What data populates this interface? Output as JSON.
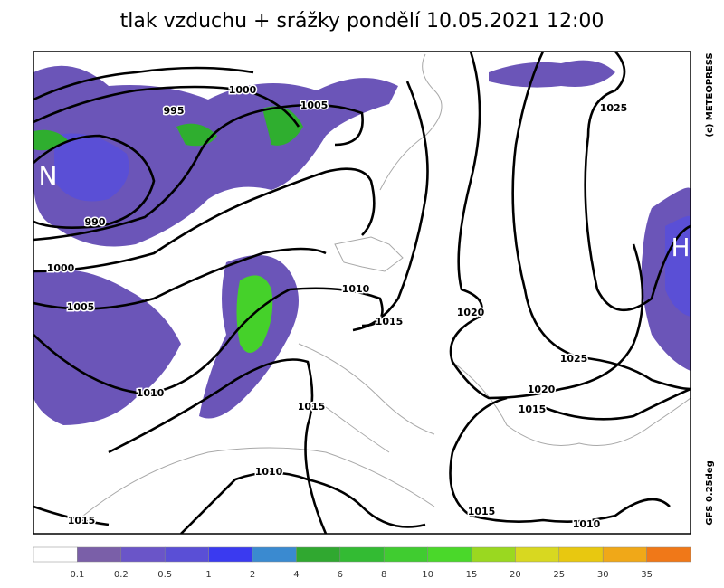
{
  "header": {
    "title": "tlak vzduchu + srážky pondělí 10.05.2021 12:00"
  },
  "side": {
    "copyright": "(c) METEOPRESS",
    "model": "GFS 0.25deg"
  },
  "centers": [
    "N",
    "H"
  ],
  "isobar_labels": [
    "1000",
    "995",
    "1005",
    "990",
    "1000",
    "1005",
    "1010",
    "1015",
    "1020",
    "1025",
    "1010",
    "1015",
    "1025",
    "1020",
    "1015",
    "1010",
    "1015",
    "1015",
    "1010"
  ],
  "legend": {
    "colors": [
      "#ffffff",
      "#7a5fa8",
      "#6a55c8",
      "#5a4fd6",
      "#3a3af0",
      "#3a8ad0",
      "#30a830",
      "#33bb33",
      "#40cc30",
      "#4ad82a",
      "#9ad820",
      "#d8d820",
      "#e8c810",
      "#f0a818",
      "#f07818",
      "#f05010",
      "#f01010",
      "#a01010"
    ],
    "labels": [
      "0.1",
      "0.2",
      "0.5",
      "1",
      "2",
      "4",
      "6",
      "8",
      "10",
      "15",
      "20",
      "25",
      "30",
      "35"
    ]
  }
}
